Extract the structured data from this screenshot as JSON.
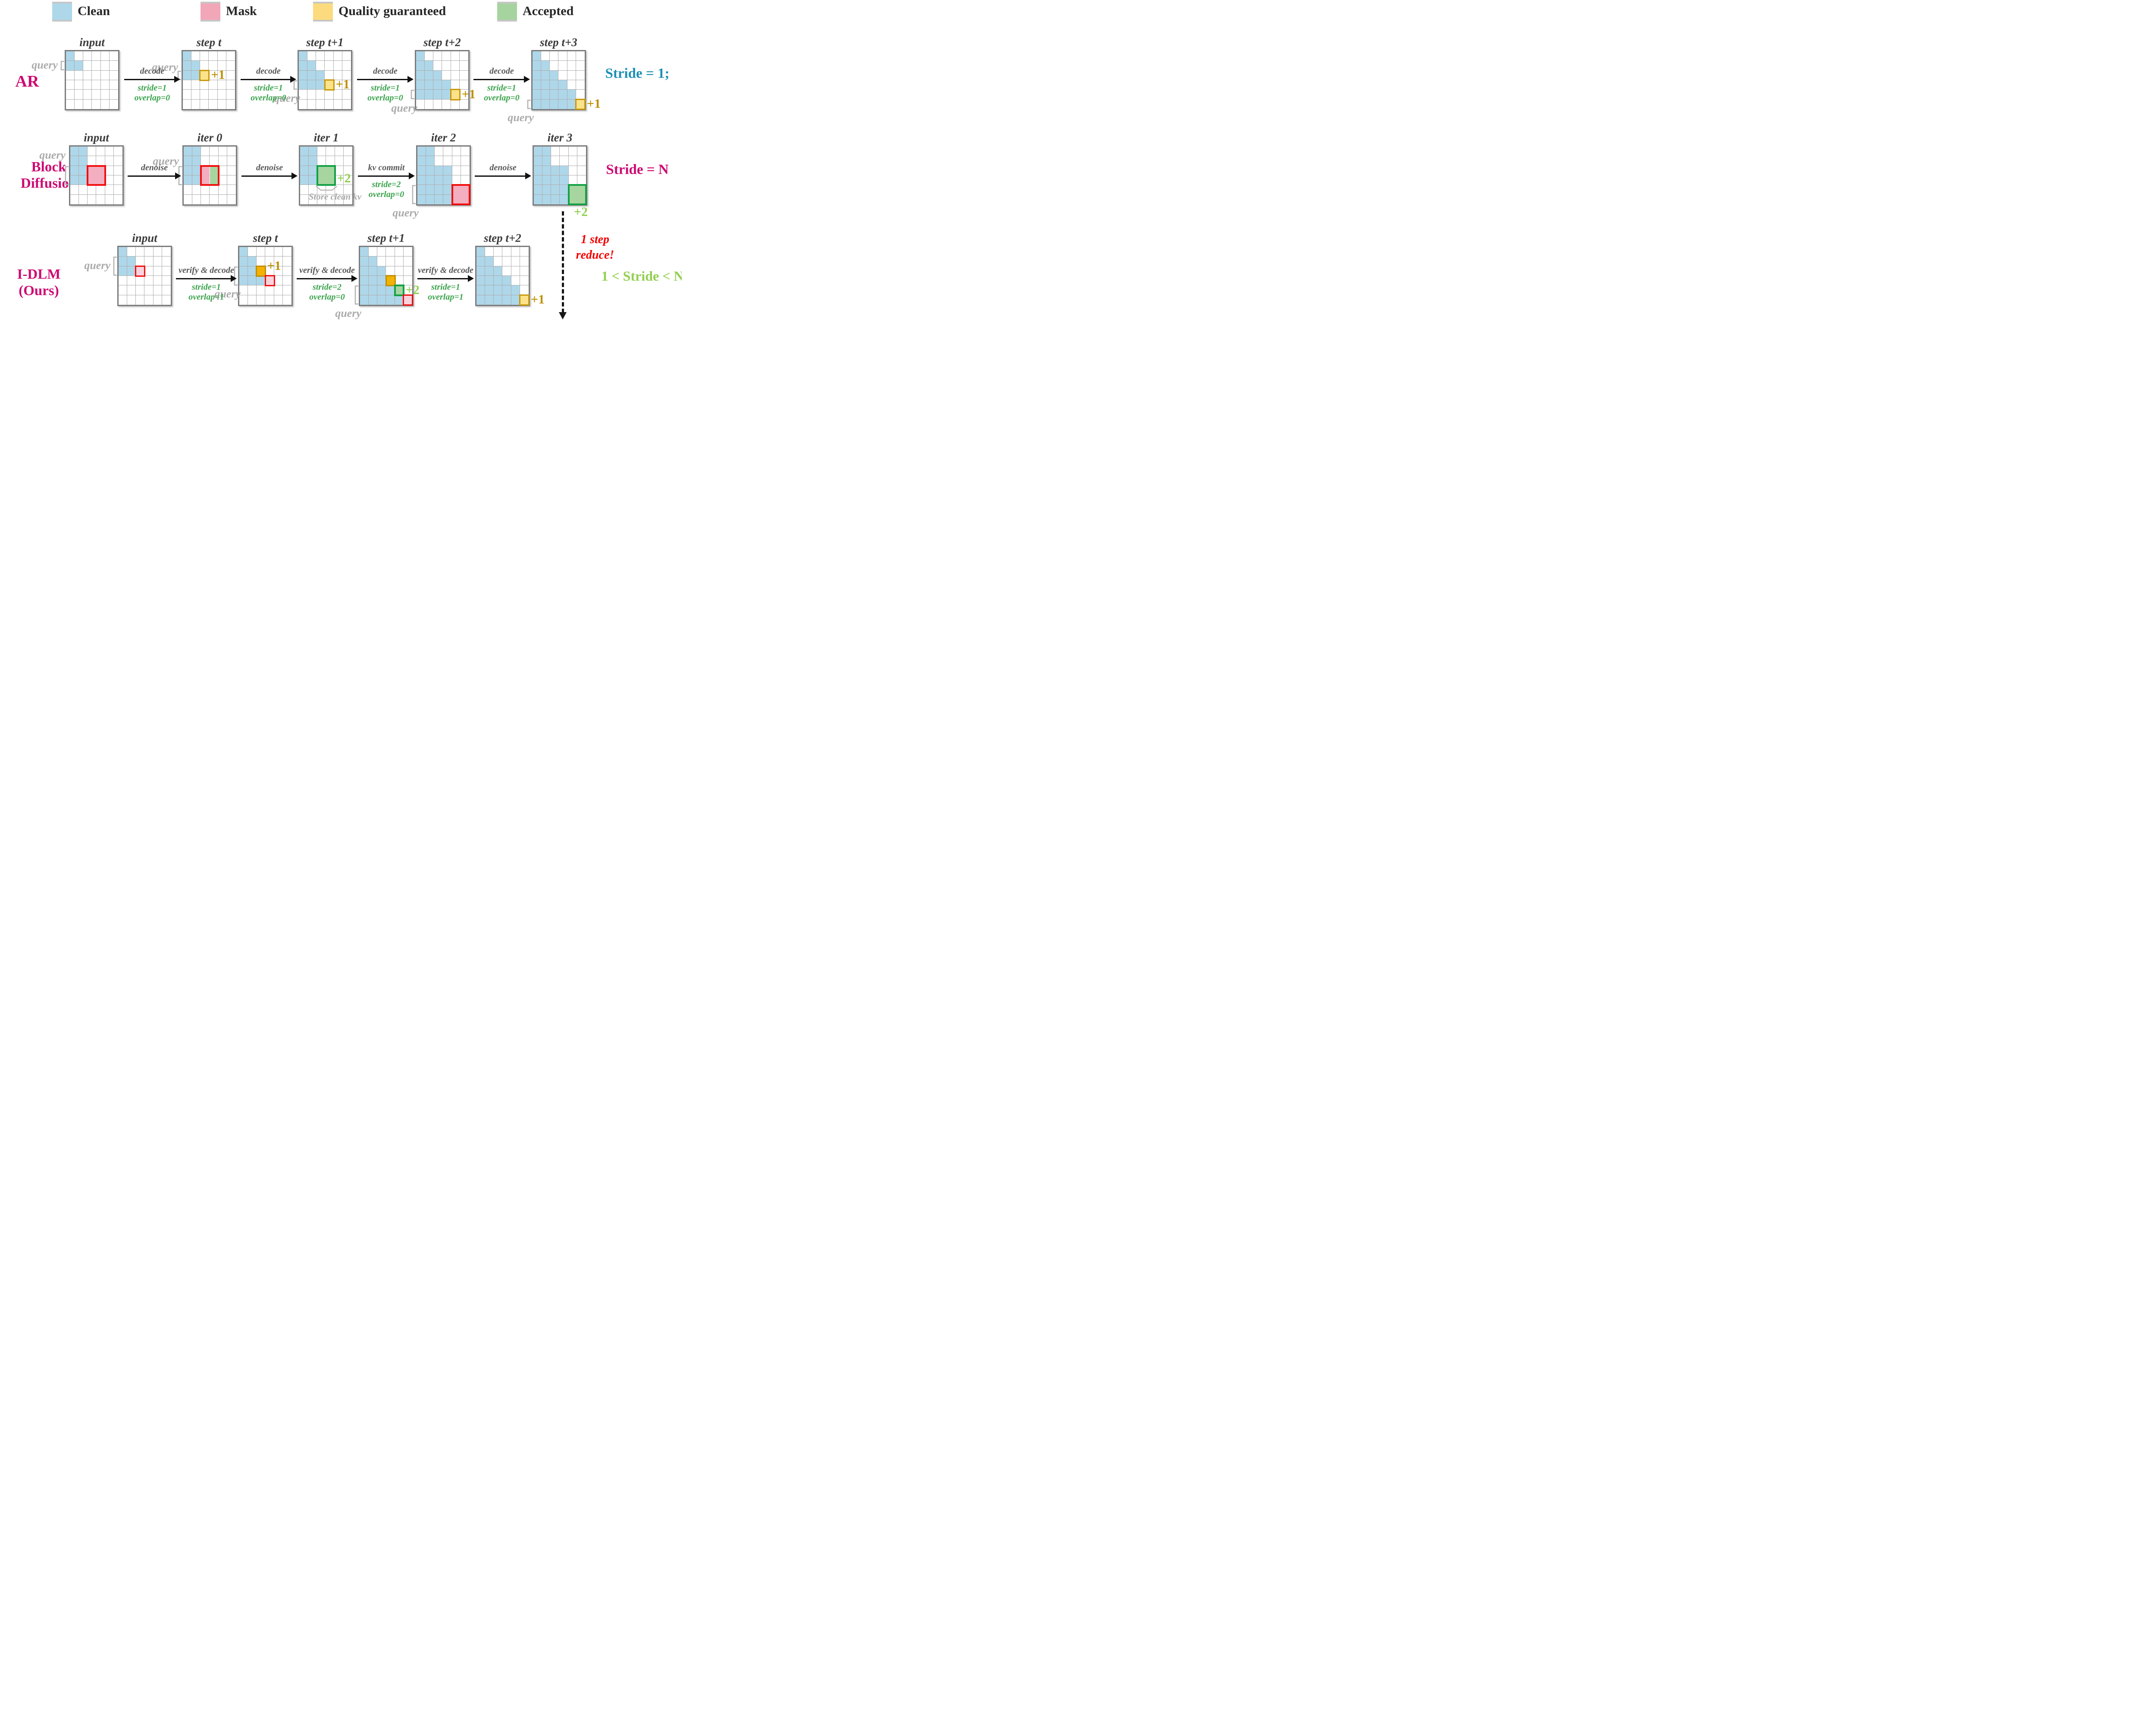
{
  "legend": {
    "items": [
      {
        "name": "clean",
        "label": "Clean",
        "color": "#aed7ea"
      },
      {
        "name": "mask",
        "label": "Mask",
        "color": "#f2a7b8"
      },
      {
        "name": "quality-guaranteed",
        "label": "Quality guaranteed",
        "color": "#fbdb7e"
      },
      {
        "name": "accepted",
        "label": "Accepted",
        "color": "#a6d49f"
      }
    ]
  },
  "annotations": {
    "query_label": "query",
    "store_note": "Store clean kv",
    "reduce_lines": [
      "1 step",
      "reduce!"
    ],
    "reduce_color": "#f60000",
    "stride_between": "1 < Stride < N",
    "stride_between_color": "#92d050"
  },
  "colors": {
    "blue_fill": "#aed7ea",
    "mask_fill": "#f3afc0",
    "mask_light_fill": "#f8d2dc",
    "mask_border": "#f20d0d",
    "quality_fill": "#fce289",
    "quality_border": "#c7980b",
    "quality_solid_fill": "#f2b206",
    "quality_solid_border": "#c08e06",
    "accepted_fill": "#a7d5a0",
    "accepted_border": "#12a145",
    "gold_text": "#bf9000",
    "light_green_text": "#92d050",
    "magenta": "#ce0a72",
    "teal": "#1e90b4"
  },
  "rows": [
    {
      "id": "ar",
      "label_lines": [
        "AR"
      ],
      "side_note": {
        "text": "Stride = 1;",
        "color": "#1e90b4"
      },
      "arrows": [
        {
          "label": "decode",
          "line1": "stride=1",
          "line2": "overlap=0"
        },
        {
          "label": "decode",
          "line1": "stride=1",
          "line2": "overlap=0"
        },
        {
          "label": "decode",
          "line1": "stride=1",
          "line2": "overlap=0"
        },
        {
          "label": "decode",
          "line1": "stride=1",
          "line2": "overlap=0"
        }
      ],
      "grids": [
        {
          "title": "input",
          "blue": [
            [
              0,
              0
            ],
            [
              1,
              0
            ],
            [
              1,
              1
            ]
          ],
          "overlays": [],
          "query": {
            "r0": 1,
            "r1": 1,
            "placement": "left"
          }
        },
        {
          "title": "step t",
          "blue": [
            [
              0,
              0
            ],
            [
              1,
              0
            ],
            [
              1,
              1
            ],
            [
              2,
              0
            ],
            [
              2,
              1
            ]
          ],
          "overlays": [
            {
              "type": "quality",
              "r0": 2,
              "c0": 2,
              "r1": 2,
              "c1": 2,
              "label": "+1",
              "label_pos": "right",
              "label_color": "#bf9000"
            }
          ],
          "query": {
            "r0": 2,
            "r1": 2,
            "placement": "above-left",
            "label_row": 1.05
          }
        },
        {
          "title": "step t+1",
          "blue": [
            [
              0,
              0
            ],
            [
              1,
              0
            ],
            [
              1,
              1
            ],
            [
              2,
              0
            ],
            [
              2,
              1
            ],
            [
              2,
              2
            ],
            [
              3,
              0
            ],
            [
              3,
              1
            ],
            [
              3,
              2
            ]
          ],
          "overlays": [
            {
              "type": "quality",
              "r0": 3,
              "c0": 3,
              "r1": 3,
              "c1": 3,
              "label": "+1",
              "label_pos": "right",
              "label_color": "#bf9000"
            }
          ],
          "query": {
            "r0": 3,
            "r1": 3,
            "placement": "below-left"
          }
        },
        {
          "title": "step t+2",
          "blue": [
            [
              0,
              0
            ],
            [
              1,
              0
            ],
            [
              1,
              1
            ],
            [
              2,
              0
            ],
            [
              2,
              1
            ],
            [
              2,
              2
            ],
            [
              3,
              0
            ],
            [
              3,
              1
            ],
            [
              3,
              2
            ],
            [
              3,
              3
            ],
            [
              4,
              0
            ],
            [
              4,
              1
            ],
            [
              4,
              2
            ],
            [
              4,
              3
            ]
          ],
          "overlays": [
            {
              "type": "quality",
              "r0": 4,
              "c0": 4,
              "r1": 4,
              "c1": 4,
              "label": "+1",
              "label_pos": "right",
              "label_color": "#bf9000"
            }
          ],
          "query": {
            "r0": 4,
            "r1": 4,
            "placement": "below-left"
          }
        },
        {
          "title": "step t+3",
          "blue": [
            [
              0,
              0
            ],
            [
              1,
              0
            ],
            [
              1,
              1
            ],
            [
              2,
              0
            ],
            [
              2,
              1
            ],
            [
              2,
              2
            ],
            [
              3,
              0
            ],
            [
              3,
              1
            ],
            [
              3,
              2
            ],
            [
              3,
              3
            ],
            [
              4,
              0
            ],
            [
              4,
              1
            ],
            [
              4,
              2
            ],
            [
              4,
              3
            ],
            [
              4,
              4
            ],
            [
              5,
              0
            ],
            [
              5,
              1
            ],
            [
              5,
              2
            ],
            [
              5,
              3
            ],
            [
              5,
              4
            ]
          ],
          "overlays": [
            {
              "type": "quality",
              "r0": 5,
              "c0": 5,
              "r1": 5,
              "c1": 5,
              "label": "+1",
              "label_pos": "right",
              "label_color": "#bf9000"
            }
          ],
          "query": {
            "r0": 5,
            "r1": 5,
            "placement": "below-left"
          }
        }
      ]
    },
    {
      "id": "block-diffusion",
      "label_lines": [
        "Block",
        "Diffusion"
      ],
      "side_note": {
        "text": "Stride = N",
        "color": "#ce0a72"
      },
      "arrows": [
        {
          "label": "denoise"
        },
        {
          "label": "denoise"
        },
        {
          "label": "kv commit",
          "line1": "stride=2",
          "line2": "overlap=0"
        },
        {
          "label": "denoise"
        }
      ],
      "grids": [
        {
          "title": "input",
          "blue": [
            [
              0,
              0
            ],
            [
              0,
              1
            ],
            [
              1,
              0
            ],
            [
              1,
              1
            ],
            [
              2,
              0
            ],
            [
              2,
              1
            ],
            [
              3,
              0
            ],
            [
              3,
              1
            ]
          ],
          "overlays": [
            {
              "type": "mask",
              "r0": 2,
              "c0": 2,
              "r1": 3,
              "c1": 3
            }
          ],
          "query": {
            "r0": 2,
            "r1": 3,
            "placement": "above-left",
            "label_row": 0.25
          }
        },
        {
          "title": "iter 0",
          "blue": [
            [
              0,
              0
            ],
            [
              0,
              1
            ],
            [
              1,
              0
            ],
            [
              1,
              1
            ],
            [
              2,
              0
            ],
            [
              2,
              1
            ],
            [
              3,
              0
            ],
            [
              3,
              1
            ]
          ],
          "overlays": [
            {
              "type": "split",
              "r0": 2,
              "c0": 2,
              "r1": 3,
              "c1": 3
            }
          ],
          "query": {
            "r0": 2,
            "r1": 3,
            "placement": "above-left",
            "label_row": 0.9
          }
        },
        {
          "title": "iter 1",
          "blue": [
            [
              0,
              0
            ],
            [
              0,
              1
            ],
            [
              1,
              0
            ],
            [
              1,
              1
            ],
            [
              2,
              0
            ],
            [
              2,
              1
            ],
            [
              3,
              0
            ],
            [
              3,
              1
            ]
          ],
          "overlays": [
            {
              "type": "accepted",
              "r0": 2,
              "c0": 2,
              "r1": 3,
              "c1": 3,
              "label": "+2",
              "label_pos": "right-low",
              "label_color": "#92d050"
            }
          ],
          "note": true
        },
        {
          "title": "iter 2",
          "blue": [
            [
              0,
              0
            ],
            [
              0,
              1
            ],
            [
              1,
              0
            ],
            [
              1,
              1
            ],
            [
              2,
              0
            ],
            [
              2,
              1
            ],
            [
              2,
              2
            ],
            [
              2,
              3
            ],
            [
              3,
              0
            ],
            [
              3,
              1
            ],
            [
              3,
              2
            ],
            [
              3,
              3
            ],
            [
              4,
              0
            ],
            [
              4,
              1
            ],
            [
              4,
              2
            ],
            [
              4,
              3
            ],
            [
              5,
              0
            ],
            [
              5,
              1
            ],
            [
              5,
              2
            ],
            [
              5,
              3
            ]
          ],
          "overlays": [
            {
              "type": "mask",
              "r0": 4,
              "c0": 4,
              "r1": 5,
              "c1": 5
            }
          ],
          "query": {
            "r0": 4,
            "r1": 5,
            "placement": "below-left"
          }
        },
        {
          "title": "iter 3",
          "blue": [
            [
              0,
              0
            ],
            [
              0,
              1
            ],
            [
              1,
              0
            ],
            [
              1,
              1
            ],
            [
              2,
              0
            ],
            [
              2,
              1
            ],
            [
              2,
              2
            ],
            [
              2,
              3
            ],
            [
              3,
              0
            ],
            [
              3,
              1
            ],
            [
              3,
              2
            ],
            [
              3,
              3
            ],
            [
              4,
              0
            ],
            [
              4,
              1
            ],
            [
              4,
              2
            ],
            [
              4,
              3
            ],
            [
              5,
              0
            ],
            [
              5,
              1
            ],
            [
              5,
              2
            ],
            [
              5,
              3
            ]
          ],
          "overlays": [
            {
              "type": "accepted",
              "r0": 4,
              "c0": 4,
              "r1": 5,
              "c1": 5,
              "label": "+2",
              "label_pos": "below-right",
              "label_color": "#92d050"
            }
          ]
        }
      ]
    },
    {
      "id": "idlm",
      "label_lines": [
        "I-DLM",
        "(Ours)"
      ],
      "arrows": [
        {
          "label": "verify & decode",
          "line1": "stride=1",
          "line2": "overlap=1"
        },
        {
          "label": "verify & decode",
          "line1": "stride=2",
          "line2": "overlap=0"
        },
        {
          "label": "verify & decode",
          "line1": "stride=1",
          "line2": "overlap=1"
        }
      ],
      "grids": [
        {
          "title": "input",
          "blue": [
            [
              0,
              0
            ],
            [
              1,
              0
            ],
            [
              1,
              1
            ],
            [
              2,
              0
            ],
            [
              2,
              1
            ]
          ],
          "overlays": [
            {
              "type": "mask-light",
              "r0": 2,
              "c0": 2,
              "r1": 2,
              "c1": 2
            }
          ],
          "query": {
            "r0": 1,
            "r1": 2,
            "placement": "left"
          }
        },
        {
          "title": "step t",
          "blue": [
            [
              0,
              0
            ],
            [
              1,
              0
            ],
            [
              1,
              1
            ],
            [
              2,
              0
            ],
            [
              2,
              1
            ],
            [
              3,
              0
            ],
            [
              3,
              1
            ],
            [
              3,
              2
            ]
          ],
          "overlays": [
            {
              "type": "quality-solid",
              "r0": 2,
              "c0": 2,
              "r1": 2,
              "c1": 2,
              "label": "+1",
              "label_pos": "above-right",
              "label_color": "#bf9000"
            },
            {
              "type": "mask-light",
              "r0": 3,
              "c0": 3,
              "r1": 3,
              "c1": 3
            }
          ],
          "query": {
            "r0": 2,
            "r1": 3,
            "placement": "below-left"
          }
        },
        {
          "title": "step t+1",
          "blue": [
            [
              0,
              0
            ],
            [
              1,
              0
            ],
            [
              1,
              1
            ],
            [
              2,
              0
            ],
            [
              2,
              1
            ],
            [
              2,
              2
            ],
            [
              3,
              0
            ],
            [
              3,
              1
            ],
            [
              3,
              2
            ],
            [
              4,
              0
            ],
            [
              4,
              1
            ],
            [
              4,
              2
            ],
            [
              4,
              3
            ],
            [
              5,
              0
            ],
            [
              5,
              1
            ],
            [
              5,
              2
            ],
            [
              5,
              3
            ],
            [
              5,
              4
            ]
          ],
          "overlays": [
            {
              "type": "quality-solid",
              "r0": 3,
              "c0": 3,
              "r1": 3,
              "c1": 3
            },
            {
              "type": "accepted",
              "r0": 4,
              "c0": 4,
              "r1": 4,
              "c1": 4,
              "label": "+2",
              "label_pos": "right",
              "label_color": "#92d050"
            },
            {
              "type": "mask-light",
              "r0": 5,
              "c0": 5,
              "r1": 5,
              "c1": 5
            }
          ],
          "query": {
            "r0": 4,
            "r1": 5,
            "placement": "below-left"
          }
        },
        {
          "title": "step t+2",
          "blue": [
            [
              0,
              0
            ],
            [
              1,
              0
            ],
            [
              1,
              1
            ],
            [
              2,
              0
            ],
            [
              2,
              1
            ],
            [
              2,
              2
            ],
            [
              3,
              0
            ],
            [
              3,
              1
            ],
            [
              3,
              2
            ],
            [
              3,
              3
            ],
            [
              4,
              0
            ],
            [
              4,
              1
            ],
            [
              4,
              2
            ],
            [
              4,
              3
            ],
            [
              4,
              4
            ],
            [
              5,
              0
            ],
            [
              5,
              1
            ],
            [
              5,
              2
            ],
            [
              5,
              3
            ],
            [
              5,
              4
            ]
          ],
          "overlays": [
            {
              "type": "quality",
              "r0": 5,
              "c0": 5,
              "r1": 5,
              "c1": 5,
              "label": "+1",
              "label_pos": "right",
              "label_color": "#bf9000"
            }
          ]
        }
      ]
    }
  ]
}
